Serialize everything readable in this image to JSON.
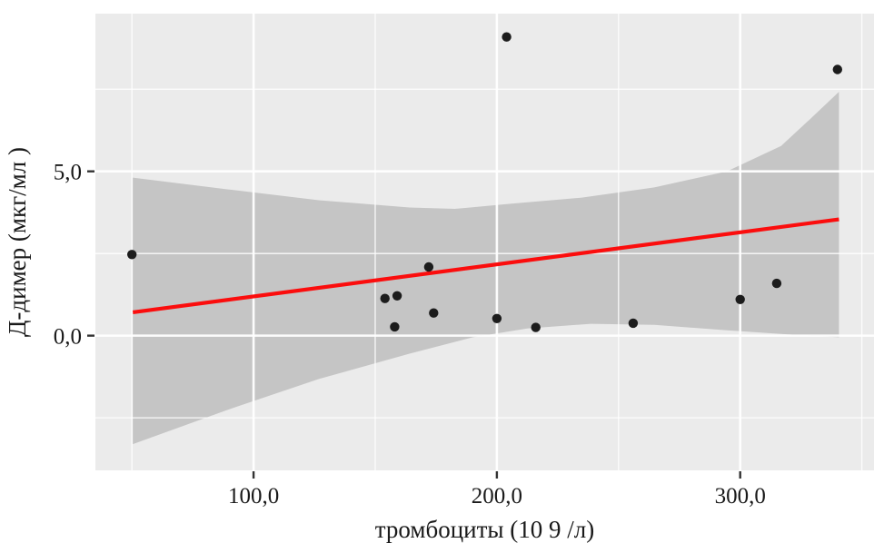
{
  "chart_data": {
    "type": "scatter",
    "title": "",
    "xlabel": "тромбоциты (10 9 /л)",
    "ylabel": "Д-димер (мкг/мл )",
    "xlim": [
      35,
      355
    ],
    "ylim": [
      -4.1,
      9.8
    ],
    "grid": "on",
    "legend": "none",
    "x_major_ticks": [
      {
        "value": 100,
        "label": "100,0"
      },
      {
        "value": 200,
        "label": "200,0"
      },
      {
        "value": 300,
        "label": "300,0"
      }
    ],
    "y_major_ticks": [
      {
        "value": 0,
        "label": "0,0"
      },
      {
        "value": 5,
        "label": "5,0"
      }
    ],
    "x_minor_ticks": [
      50,
      150,
      250,
      350
    ],
    "y_minor_ticks": [
      -2.5,
      2.5,
      7.5
    ],
    "points": [
      [
        50,
        2.47
      ],
      [
        154,
        1.13
      ],
      [
        159,
        1.21
      ],
      [
        158,
        0.27
      ],
      [
        172,
        2.09
      ],
      [
        174,
        0.69
      ],
      [
        200,
        0.52
      ],
      [
        204,
        9.09
      ],
      [
        216,
        0.25
      ],
      [
        256,
        0.38
      ],
      [
        300,
        1.1
      ],
      [
        315,
        1.59
      ],
      [
        340,
        8.1
      ]
    ],
    "regression_line": {
      "x1": 50.4,
      "y1": 0.71,
      "x2": 340.6,
      "y2": 3.54
    },
    "confidence_band": {
      "upper": [
        [
          50.4,
          4.81
        ],
        [
          89.6,
          4.45
        ],
        [
          126.8,
          4.12
        ],
        [
          164.1,
          3.9
        ],
        [
          182.7,
          3.86
        ],
        [
          205.1,
          4.01
        ],
        [
          234.9,
          4.2
        ],
        [
          264.7,
          4.51
        ],
        [
          294.5,
          5.0
        ],
        [
          316.8,
          5.77
        ],
        [
          328.7,
          6.59
        ],
        [
          340.6,
          7.42
        ]
      ],
      "lower": [
        [
          50.4,
          -3.3
        ],
        [
          89.6,
          -2.25
        ],
        [
          126.8,
          -1.32
        ],
        [
          164.1,
          -0.55
        ],
        [
          190.2,
          -0.05
        ],
        [
          212.5,
          0.22
        ],
        [
          238.6,
          0.36
        ],
        [
          264.7,
          0.33
        ],
        [
          294.5,
          0.16
        ],
        [
          316.8,
          0.05
        ],
        [
          340.6,
          -0.05
        ]
      ]
    },
    "styles": {
      "panel_bg": "#ebebeb",
      "grid_color": "#ffffff",
      "band_color": "#000000",
      "band_opacity": 0.16,
      "line_color": "#fb0d0d",
      "point_color": "#1c1c1c",
      "tick_color": "#333333",
      "label_color": "#1a1a1a"
    }
  }
}
